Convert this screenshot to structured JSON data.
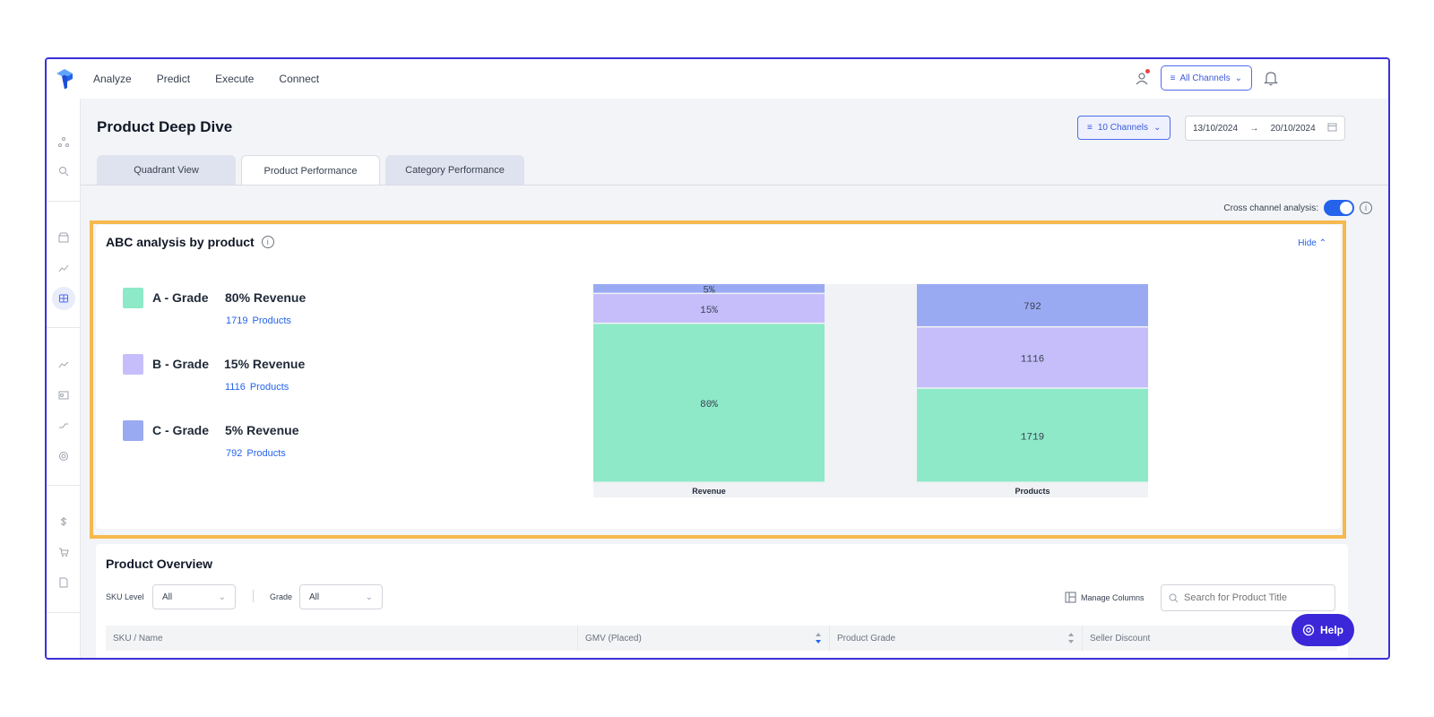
{
  "nav": {
    "links": [
      "Analyze",
      "Predict",
      "Execute",
      "Connect"
    ],
    "channels_label": "All Channels"
  },
  "header": {
    "title": "Product Deep Dive",
    "channels_filter": "10 Channels",
    "date_from": "13/10/2024",
    "date_arrow": "→",
    "date_to": "20/10/2024"
  },
  "tabs": [
    {
      "label": "Quadrant View",
      "active": false
    },
    {
      "label": "Product Performance",
      "active": true
    },
    {
      "label": "Category Performance",
      "active": false
    }
  ],
  "cross_channel": {
    "label": "Cross channel analysis:",
    "enabled": true
  },
  "abc": {
    "title": "ABC analysis by product",
    "hide_label": "Hide",
    "grades": [
      {
        "grade": "A - Grade",
        "revenue": "80% Revenue",
        "count": "1719",
        "unit": "Products",
        "color": "#8ee9c8"
      },
      {
        "grade": "B - Grade",
        "revenue": "15% Revenue",
        "count": "1116",
        "unit": "Products",
        "color": "#c6befa"
      },
      {
        "grade": "C - Grade",
        "revenue": "5% Revenue",
        "count": "792",
        "unit": "Products",
        "color": "#9aaaf2"
      }
    ]
  },
  "chart_data": {
    "type": "bar",
    "stacked": true,
    "categories": [
      "Revenue",
      "Products"
    ],
    "series": [
      {
        "name": "A - Grade",
        "values": [
          80,
          1719
        ],
        "labels": [
          "80%",
          "1719"
        ],
        "color": "#8ee9c8"
      },
      {
        "name": "B - Grade",
        "values": [
          15,
          1116
        ],
        "labels": [
          "15%",
          "1116"
        ],
        "color": "#c6befa"
      },
      {
        "name": "C - Grade",
        "values": [
          5,
          792
        ],
        "labels": [
          "5%",
          "792"
        ],
        "color": "#9aaaf2"
      }
    ],
    "totals": [
      100,
      3627
    ]
  },
  "overview": {
    "title": "Product Overview",
    "sku_label": "SKU Level",
    "sku_value": "All",
    "grade_label": "Grade",
    "grade_value": "All",
    "manage_columns": "Manage Columns",
    "search_placeholder": "Search for Product Title",
    "columns": [
      "SKU / Name",
      "GMV (Placed)",
      "Product Grade",
      "Seller Discount"
    ]
  },
  "help_label": "Help"
}
